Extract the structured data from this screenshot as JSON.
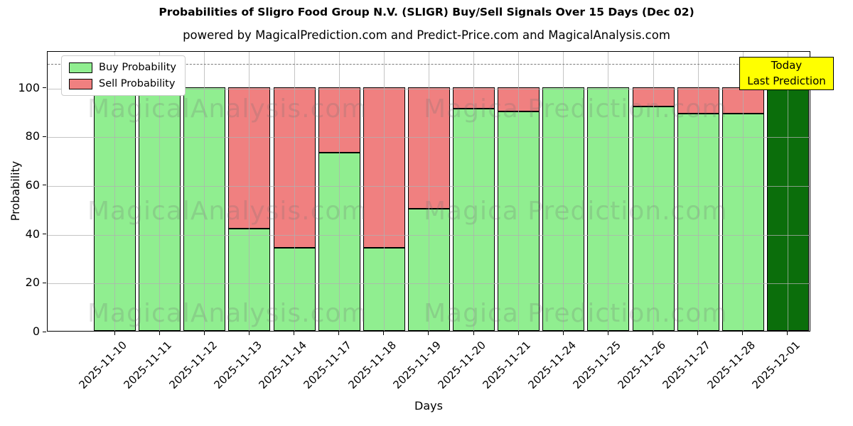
{
  "title": "Probabilities of Sligro Food Group N.V. (SLIGR) Buy/Sell Signals Over 15 Days (Dec 02)",
  "subtitle": "powered by MagicalPrediction.com and Predict-Price.com and MagicalAnalysis.com",
  "chart_data": {
    "type": "bar",
    "stacked": true,
    "title": "Probabilities of Sligro Food Group N.V. (SLIGR) Buy/Sell Signals Over 15 Days (Dec 02)",
    "subtitle": "powered by MagicalPrediction.com and Predict-Price.com and MagicalAnalysis.com",
    "xlabel": "Days",
    "ylabel": "Probability",
    "ylim": [
      0,
      115
    ],
    "yticks": [
      0,
      20,
      40,
      60,
      80,
      100
    ],
    "grid": true,
    "threshold_line": {
      "y": 110,
      "style": "dashed",
      "color": "#7a7a7a"
    },
    "categories": [
      "2025-11-10",
      "2025-11-11",
      "2025-11-12",
      "2025-11-13",
      "2025-11-14",
      "2025-11-17",
      "2025-11-18",
      "2025-11-19",
      "2025-11-20",
      "2025-11-21",
      "2025-11-24",
      "2025-11-25",
      "2025-11-26",
      "2025-11-27",
      "2025-11-28",
      "2025-12-01"
    ],
    "series": [
      {
        "name": "Buy Probability",
        "color": "#90EE90",
        "values": [
          100,
          100,
          100,
          42,
          34,
          73,
          34,
          50,
          91,
          90,
          100,
          100,
          92,
          89,
          89,
          100
        ]
      },
      {
        "name": "Sell Probability",
        "color": "#F08080",
        "values": [
          0,
          0,
          0,
          58,
          66,
          27,
          66,
          50,
          9,
          10,
          0,
          0,
          8,
          11,
          11,
          0
        ]
      }
    ],
    "today_bar": {
      "index": 15,
      "category": "2025-12-01",
      "value": 100,
      "color": "#0b6e0b"
    },
    "legend": {
      "position": "upper-left",
      "items": [
        {
          "label": "Buy Probability",
          "color": "#90EE90"
        },
        {
          "label": "Sell Probability",
          "color": "#F08080"
        }
      ]
    },
    "annotation": {
      "lines": [
        "Today",
        "Last Prediction"
      ],
      "bg": "#ffff00",
      "border": "#000000"
    },
    "watermarks": {
      "left": "MagicalAnalysis.com",
      "right": "Magica Prediction.com"
    }
  }
}
